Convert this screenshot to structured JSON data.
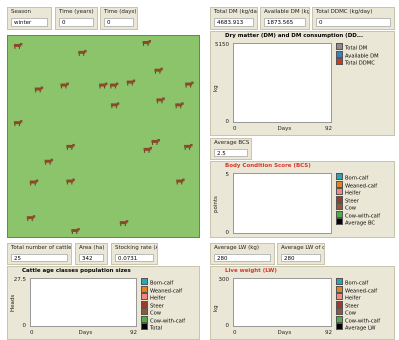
{
  "monitors": [
    {
      "label": "Season",
      "value": "winter"
    },
    {
      "label": "Time (years)",
      "value": 0
    },
    {
      "label": "Time (days)",
      "value": 0
    },
    {
      "label": "Total DM (kg/day)",
      "value": 4683.913
    },
    {
      "label": "Available DM (kg/day)",
      "value": 1873.565
    },
    {
      "label": "Total DDMC (kg/day)",
      "value": 0
    },
    {
      "label": "Average BCS (points)",
      "value": 2.5
    },
    {
      "label": "Total number of cattle",
      "value": 25
    },
    {
      "label": "Area (ha)",
      "value": 342
    },
    {
      "label": "Stocking rate (AU/ha)",
      "value": 0.0731
    },
    {
      "label": "Average LW (kg)",
      "value": 280
    },
    {
      "label": "Average LW of cows (kg)",
      "value": 280
    }
  ],
  "plots": [
    {
      "title": "Dry matter (DM) and DM consumption (DD...",
      "title_color": "#000000",
      "ylabel": "kg",
      "ymin": 0,
      "ymax": 5150,
      "xmin": 0,
      "xlabel": "Days",
      "xmax": 92,
      "legend": [
        {
          "name": "Total DM",
          "color": "#8c8c8c"
        },
        {
          "name": "Available DM",
          "color": "#3a7fc0"
        },
        {
          "name": "Total DDMC",
          "color": "#d8332a"
        }
      ]
    },
    {
      "title": "Body Condition Score (BCS)",
      "title_color": "#d8332a",
      "ylabel": "points",
      "ymin": 0,
      "ymax": 5,
      "legend": [
        {
          "name": "Born-calf",
          "color": "#2aa5b8"
        },
        {
          "name": "Weaned-calf",
          "color": "#e8801e"
        },
        {
          "name": "Heifer",
          "color": "#f08a80"
        },
        {
          "name": "Steer",
          "color": "#9b3b2e"
        },
        {
          "name": "Cow",
          "color": "#8a5a3a"
        },
        {
          "name": "Cow-with-calf",
          "color": "#4caf40"
        },
        {
          "name": "Average BC",
          "color": "#000000"
        }
      ]
    },
    {
      "title": "Cattle age classes population sizes",
      "title_color": "#000000",
      "ylabel": "Heads",
      "ymin": 0,
      "ymax": 27.5,
      "xmin": 0,
      "xlabel": "Days",
      "xmax": 92,
      "legend": [
        {
          "name": "Born-calf",
          "color": "#2aa5b8"
        },
        {
          "name": "Weaned-calf",
          "color": "#e8801e"
        },
        {
          "name": "Heifer",
          "color": "#f08a80"
        },
        {
          "name": "Steer",
          "color": "#9b3b2e"
        },
        {
          "name": "Cow",
          "color": "#8a5a3a"
        },
        {
          "name": "Cow-with-calf",
          "color": "#4caf40"
        },
        {
          "name": "Total",
          "color": "#000000"
        }
      ]
    },
    {
      "title": "Live weight (LW)",
      "title_color": "#d8332a",
      "ylabel": "kg",
      "ymin": 0,
      "ymax": 300,
      "xmin": 0,
      "xlabel": "Days",
      "xmax": 92,
      "legend": [
        {
          "name": "Born-calf",
          "color": "#2aa5b8"
        },
        {
          "name": "Weaned-calf",
          "color": "#e8801e"
        },
        {
          "name": "Heifer",
          "color": "#f08a80"
        },
        {
          "name": "Steer",
          "color": "#9b3b2e"
        },
        {
          "name": "Cow",
          "color": "#8a5a3a"
        },
        {
          "name": "Cow-with-calf",
          "color": "#4caf40"
        },
        {
          "name": "Average LW",
          "color": "#000000"
        }
      ]
    }
  ]
}
